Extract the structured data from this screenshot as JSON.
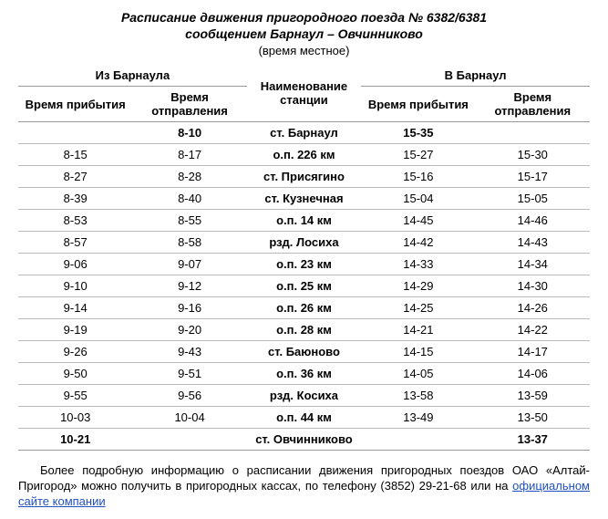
{
  "title": {
    "line1": "Расписание движения пригородного поезда № 6382/6381",
    "line2": "сообщением Барнаул – Овчинниково",
    "sub": "(время местное)"
  },
  "headers": {
    "from": "Из Барнаула",
    "to": "В Барнаул",
    "station": "Наименование станции",
    "arrival": "Время прибытия",
    "departure": "Время отправления"
  },
  "rows": [
    {
      "a1": "",
      "d1": "8-10",
      "st": "ст. Барнаул",
      "a2": "15-35",
      "d2": "",
      "bold_d1": true,
      "bold_st": true,
      "bold_a2": true
    },
    {
      "a1": "8-15",
      "d1": "8-17",
      "st": "о.п. 226 км",
      "a2": "15-27",
      "d2": "15-30",
      "bold_st": true
    },
    {
      "a1": "8-27",
      "d1": "8-28",
      "st": "ст. Присягино",
      "a2": "15-16",
      "d2": "15-17",
      "bold_st": true
    },
    {
      "a1": "8-39",
      "d1": "8-40",
      "st": "ст. Кузнечная",
      "a2": "15-04",
      "d2": "15-05",
      "bold_st": true
    },
    {
      "a1": "8-53",
      "d1": "8-55",
      "st": "о.п. 14 км",
      "a2": "14-45",
      "d2": "14-46",
      "bold_st": true
    },
    {
      "a1": "8-57",
      "d1": "8-58",
      "st": "рзд. Лосиха",
      "a2": "14-42",
      "d2": "14-43",
      "bold_st": true
    },
    {
      "a1": "9-06",
      "d1": "9-07",
      "st": "о.п. 23 км",
      "a2": "14-33",
      "d2": "14-34",
      "bold_st": true
    },
    {
      "a1": "9-10",
      "d1": "9-12",
      "st": "о.п. 25 км",
      "a2": "14-29",
      "d2": "14-30",
      "bold_st": true
    },
    {
      "a1": "9-14",
      "d1": "9-16",
      "st": "о.п. 26 км",
      "a2": "14-25",
      "d2": "14-26",
      "bold_st": true
    },
    {
      "a1": "9-19",
      "d1": "9-20",
      "st": "о.п. 28 км",
      "a2": "14-21",
      "d2": "14-22",
      "bold_st": true
    },
    {
      "a1": "9-26",
      "d1": "9-43",
      "st": "ст. Баюново",
      "a2": "14-15",
      "d2": "14-17",
      "bold_st": true
    },
    {
      "a1": "9-50",
      "d1": "9-51",
      "st": "о.п. 36 км",
      "a2": "14-05",
      "d2": "14-06",
      "bold_st": true
    },
    {
      "a1": "9-55",
      "d1": "9-56",
      "st": "рзд. Косиха",
      "a2": "13-58",
      "d2": "13-59",
      "bold_st": true
    },
    {
      "a1": "10-03",
      "d1": "10-04",
      "st": "о.п. 44 км",
      "a2": "13-49",
      "d2": "13-50",
      "bold_st": true
    },
    {
      "a1": "10-21",
      "d1": "",
      "st": "ст. Овчинниково",
      "a2": "",
      "d2": "13-37",
      "bold_a1": true,
      "bold_st": true,
      "bold_d2": true
    }
  ],
  "footer": {
    "pre": "Более подробную информацию о расписании движения пригородных поездов ОАО «Алтай-Пригород» можно получить в пригородных кассах, по телефону (3852) 29-21-68 или на ",
    "link": "официальном сайте компании"
  }
}
